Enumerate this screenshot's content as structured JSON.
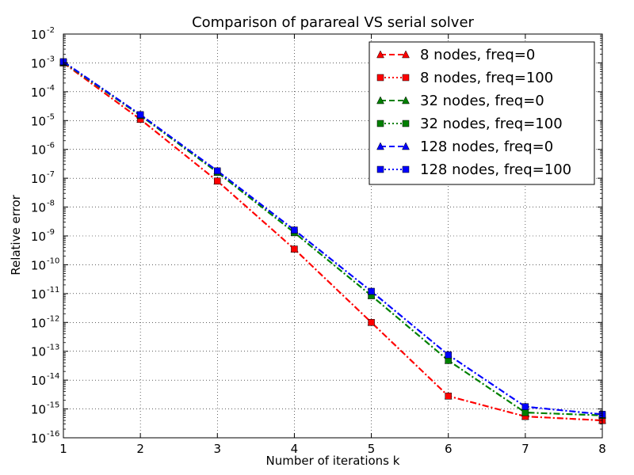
{
  "chart_data": {
    "type": "line",
    "title": "Comparison of parareal VS serial solver",
    "xlabel": "Number of iterations k",
    "ylabel": "Relative error",
    "xlim": [
      1,
      8
    ],
    "ylim": [
      1e-16,
      0.01
    ],
    "yscale": "log",
    "grid": true,
    "legend_position": "top-right",
    "x_ticks": [
      1,
      2,
      3,
      4,
      5,
      6,
      7,
      8
    ],
    "y_tick_exponents": [
      -16,
      -15,
      -14,
      -13,
      -12,
      -11,
      -10,
      -9,
      -8,
      -7,
      -6,
      -5,
      -4,
      -3,
      -2
    ],
    "x": [
      1,
      2,
      3,
      4,
      5,
      6,
      7,
      8
    ],
    "series": [
      {
        "name": "8 nodes, freq=0",
        "color": "#ff0000",
        "linestyle": "dashed",
        "marker": "triangle",
        "values": [
          0.001,
          1.1e-05,
          8e-08,
          3.5e-10,
          1e-12,
          2.8e-15,
          5.5e-16,
          4e-16
        ]
      },
      {
        "name": "8 nodes, freq=100",
        "color": "#ff0000",
        "linestyle": "dotted",
        "marker": "square",
        "values": [
          0.001,
          1.1e-05,
          8e-08,
          3.5e-10,
          1e-12,
          2.8e-15,
          5.5e-16,
          4e-16
        ]
      },
      {
        "name": "32 nodes, freq=0",
        "color": "#008000",
        "linestyle": "dashed",
        "marker": "triangle",
        "values": [
          0.00105,
          1.5e-05,
          1.6e-07,
          1.3e-09,
          8.5e-12,
          4.8e-14,
          7.5e-16,
          6e-16
        ]
      },
      {
        "name": "32 nodes, freq=100",
        "color": "#008000",
        "linestyle": "dotted",
        "marker": "square",
        "values": [
          0.00105,
          1.5e-05,
          1.6e-07,
          1.3e-09,
          8.5e-12,
          4.8e-14,
          7.5e-16,
          6e-16
        ]
      },
      {
        "name": "128 nodes, freq=0",
        "color": "#0000ff",
        "linestyle": "dashed",
        "marker": "triangle",
        "values": [
          0.0011,
          1.6e-05,
          1.8e-07,
          1.6e-09,
          1.2e-11,
          7.5e-14,
          1.2e-15,
          6.5e-16
        ]
      },
      {
        "name": "128 nodes, freq=100",
        "color": "#0000ff",
        "linestyle": "dotted",
        "marker": "square",
        "values": [
          0.0011,
          1.6e-05,
          1.8e-07,
          1.6e-09,
          1.2e-11,
          7.5e-14,
          1.2e-15,
          6.5e-16
        ]
      }
    ],
    "dash_dot_overlay": true
  }
}
